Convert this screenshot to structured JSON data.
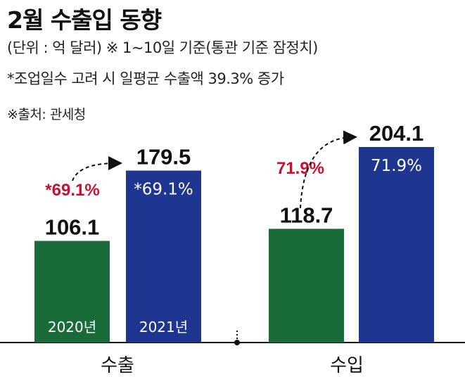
{
  "header": {
    "title": "2월 수출입 동향",
    "unit_note": "(단위 : 억 달러)  ※ 1~10일 기준(통관 기준 잠정치)",
    "workday_note": "*조업일수 고려 시 일평균 수출액 39.3% 증가",
    "source": "※출처: 관세청"
  },
  "chart_data": {
    "type": "bar",
    "title": "2월 수출입 동향",
    "unit": "억 달러",
    "categories": [
      "수출",
      "수입"
    ],
    "series": [
      {
        "name": "2020년",
        "values": [
          106.1,
          118.7
        ]
      },
      {
        "name": "2021년",
        "values": [
          179.5,
          204.1
        ]
      }
    ],
    "value_labels": {
      "2020": [
        "106.1",
        "118.7"
      ],
      "2021": [
        "179.5",
        "204.1"
      ]
    },
    "growth_labels": [
      "*69.1%",
      "71.9%"
    ],
    "inner_labels": [
      "*69.1%",
      "71.9%"
    ],
    "colors": {
      "2020": "#1a6b3a",
      "2021": "#1f3691",
      "growth": "#c8102e",
      "axis": "#111111"
    },
    "grid": false
  }
}
